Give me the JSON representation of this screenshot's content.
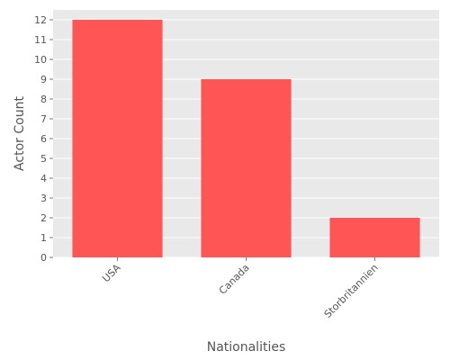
{
  "chart_data": {
    "type": "bar",
    "categories": [
      "USA",
      "Canada",
      "Storbritannien"
    ],
    "values": [
      12,
      9,
      2
    ],
    "xlabel": "Nationalities",
    "ylabel": "Actor Count",
    "ylim": [
      0,
      12.5
    ],
    "yticks": [
      "0",
      "1",
      "2",
      "3",
      "4",
      "5",
      "6",
      "7",
      "8",
      "9",
      "10",
      "11",
      "12"
    ],
    "grid": true,
    "legend": "none",
    "colors": {
      "bar": "#ff5555",
      "background": "#e9e9e9",
      "grid": "#ffffff"
    }
  }
}
